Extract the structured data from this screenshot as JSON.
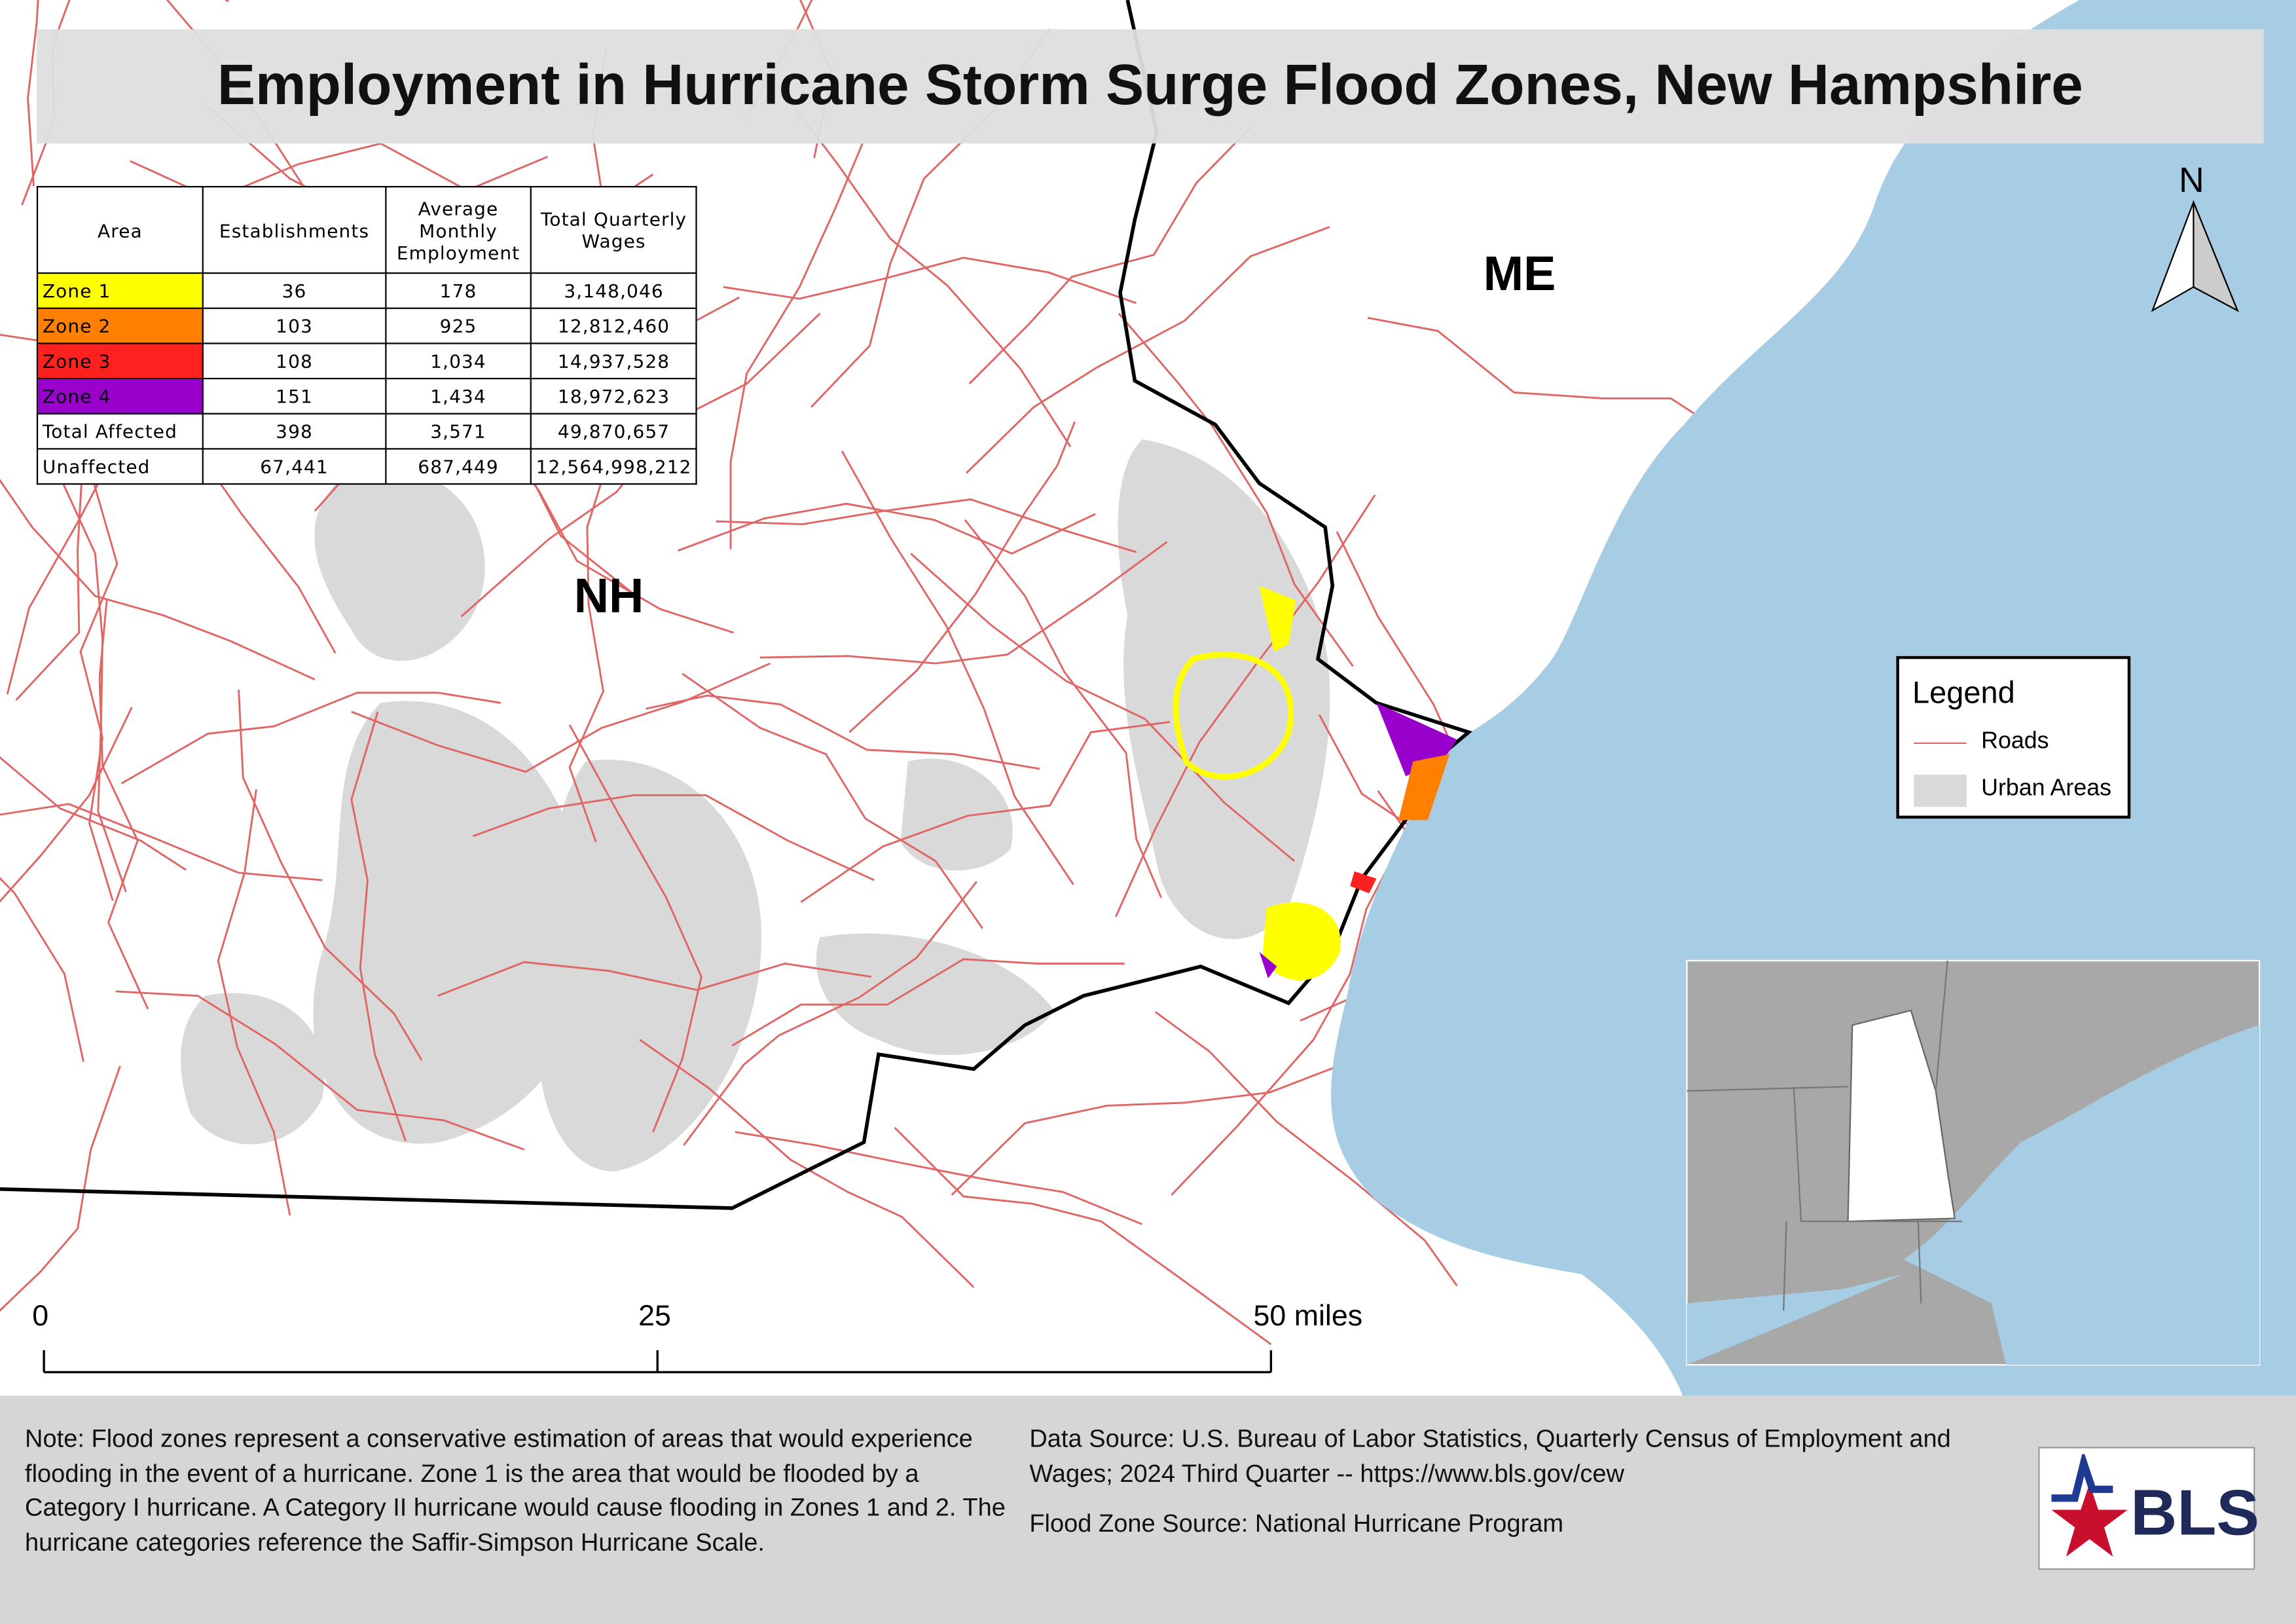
{
  "title": "Employment in Hurricane Storm Surge Flood Zones, New Hampshire",
  "table": {
    "header": [
      "Area",
      "Establishments",
      "Average Monthly Employment",
      "Total Quarterly Wages"
    ],
    "rows": [
      [
        "Zone 1",
        "36",
        "178",
        "3,148,046"
      ],
      [
        "Zone 2",
        "103",
        "925",
        "12,812,460"
      ],
      [
        "Zone 3",
        "108",
        "1,034",
        "14,937,528"
      ],
      [
        "Zone 4",
        "151",
        "1,434",
        "18,972,623"
      ],
      [
        "Total Affected",
        "398",
        "3,571",
        "49,870,657"
      ],
      [
        "Unaffected",
        "67,441",
        "687,449",
        "12,564,998,212"
      ]
    ]
  },
  "labels": {
    "nh": "NH",
    "me": "ME",
    "north": "N"
  },
  "legend": {
    "title": "Legend",
    "items": [
      "Roads",
      "Urban Areas"
    ]
  },
  "scale": [
    "0",
    "25",
    "50 miles"
  ],
  "note": "Note: Flood zones represent a conservative estimation of areas that would experience flooding in the event of a hurricane. Zone 1 is the area that would be flooded by a Category I hurricane. A Category II hurricane would cause flooding in Zones 1 and 2. The hurricane categories reference the Saffir-Simpson Hurricane Scale.",
  "data_source": "Data Source: U.S. Bureau of Labor Statistics, Quarterly Census of Employment and Wages; 2024 Third Quarter -- https://www.bls.gov/cew",
  "flood_zone_source": "Flood Zone Source: National Hurricane Program",
  "logo": "BLS"
}
